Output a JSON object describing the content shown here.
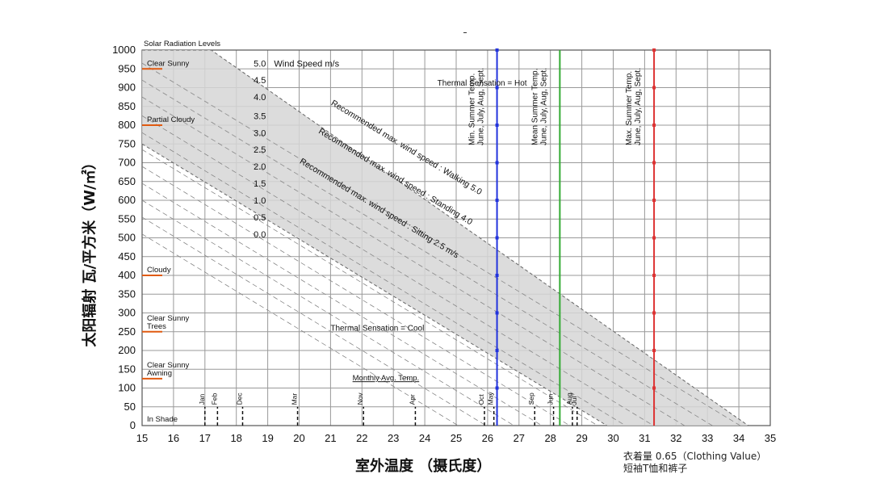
{
  "chart_data": {
    "type": "line",
    "xlabel": "室外温度 （摄氏度）",
    "ylabel": "太阳辐射 瓦/平方米（W/㎡）",
    "xlim": [
      15,
      35
    ],
    "ylim": [
      0,
      1000
    ],
    "x_ticks": [
      15,
      16,
      17,
      18,
      19,
      20,
      21,
      22,
      23,
      24,
      25,
      26,
      27,
      28,
      29,
      30,
      31,
      32,
      33,
      34,
      35
    ],
    "y_ticks": [
      0,
      50,
      100,
      150,
      200,
      250,
      300,
      350,
      400,
      450,
      500,
      550,
      600,
      650,
      700,
      750,
      800,
      850,
      900,
      950,
      1000
    ],
    "grid": true,
    "band": {
      "upper": [
        [
          15,
          1000
        ],
        [
          17.2,
          1000
        ],
        [
          34.3,
          0
        ]
      ],
      "lower": [
        [
          15,
          750
        ],
        [
          29.8,
          0
        ]
      ]
    },
    "wind_speed_title": "Wind Speed  m/s",
    "wind_speed_lines": [
      {
        "label": "5.0",
        "y": 965
      },
      {
        "label": "4.5",
        "y": 920
      },
      {
        "label": "4.0",
        "y": 875
      },
      {
        "label": "3.5",
        "y": 825
      },
      {
        "label": "3.0",
        "y": 780
      },
      {
        "label": "2.5",
        "y": 735
      },
      {
        "label": "2.0",
        "y": 690
      },
      {
        "label": "1.5",
        "y": 645
      },
      {
        "label": "1.0",
        "y": 600
      },
      {
        "label": "0.5",
        "y": 555
      },
      {
        "label": "0.0",
        "y": 510
      }
    ],
    "recommended_lines": [
      {
        "text": "Recommended max. wind speed : Walking 5.0",
        "x": 21.0,
        "y": 855
      },
      {
        "text": "Recommended max. wind speed : Standing 4.0",
        "x": 20.6,
        "y": 780
      },
      {
        "text": "Recommended max. wind speed : Sitting 2.5 m/s",
        "x": 20.0,
        "y": 700
      }
    ],
    "thermal_labels": [
      {
        "text": "Thermal Sensation = Hot",
        "x": 24.4,
        "y": 905
      },
      {
        "text": "Thermal Sensation = Cool",
        "x": 21.0,
        "y": 253
      }
    ],
    "solar_levels_title": "Solar Radiation Levels",
    "solar_levels": [
      {
        "label": "Clear Sunny",
        "value": 950
      },
      {
        "label": "Partial Cloudy",
        "value": 800
      },
      {
        "label": "Cloudy",
        "value": 400
      },
      {
        "label": "Clear Sunny\nTrees",
        "value": 250
      },
      {
        "label": "Clear Sunny\nAwning",
        "value": 125
      },
      {
        "label": "In Shade",
        "value": 0
      }
    ],
    "vertical_markers": [
      {
        "label": "Min. Summer Temp.\nJune, July, Aug, Sept.",
        "x": 26.3,
        "color": "#2233dd"
      },
      {
        "label": "Mean Summer Temp.\nJune, July, Aug, Sept.",
        "x": 28.3,
        "color": "#33aa33"
      },
      {
        "label": "Max. Summer Temp.\nJune, July, Aug, Sept.",
        "x": 31.3,
        "color": "#dd3333"
      }
    ],
    "monthly_title": "Monthly Avg. Temp.",
    "monthly_temps": [
      {
        "month": "Jan",
        "x": 17.0
      },
      {
        "month": "Feb",
        "x": 17.4
      },
      {
        "month": "Dec",
        "x": 18.2
      },
      {
        "month": "Mar",
        "x": 19.95
      },
      {
        "month": "Nov",
        "x": 22.05
      },
      {
        "month": "Apr",
        "x": 23.7
      },
      {
        "month": "Oct",
        "x": 25.9
      },
      {
        "month": "May",
        "x": 26.2
      },
      {
        "month": "Sep",
        "x": 27.5
      },
      {
        "month": "Jun",
        "x": 28.1
      },
      {
        "month": "Aug",
        "x": 28.7
      },
      {
        "month": "Jul",
        "x": 28.85
      }
    ]
  },
  "footnote": {
    "line1": "衣着量 0.65（Clothing Value）",
    "line2": "短袖T恤和裤子"
  }
}
